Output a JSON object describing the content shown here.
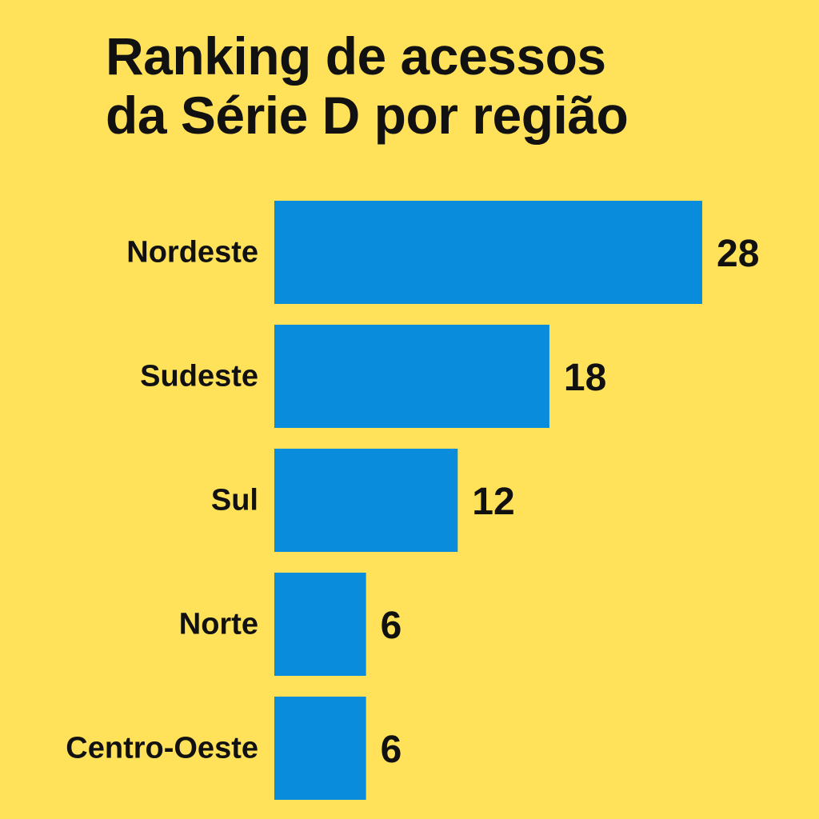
{
  "colors": {
    "background": "#FFE15A",
    "bar": "#0A8CDC",
    "text": "#111111"
  },
  "chart_data": {
    "type": "bar",
    "orientation": "horizontal",
    "title_lines": [
      "Ranking de acessos",
      "da Série D por região"
    ],
    "categories": [
      "Nordeste",
      "Sudeste",
      "Sul",
      "Norte",
      "Centro-Oeste"
    ],
    "values": [
      28,
      18,
      12,
      6,
      6
    ],
    "value_labels": [
      "28",
      "18",
      "12",
      "6",
      "6"
    ],
    "xlabel": "",
    "ylabel": "",
    "grid": false,
    "legend": "none"
  }
}
